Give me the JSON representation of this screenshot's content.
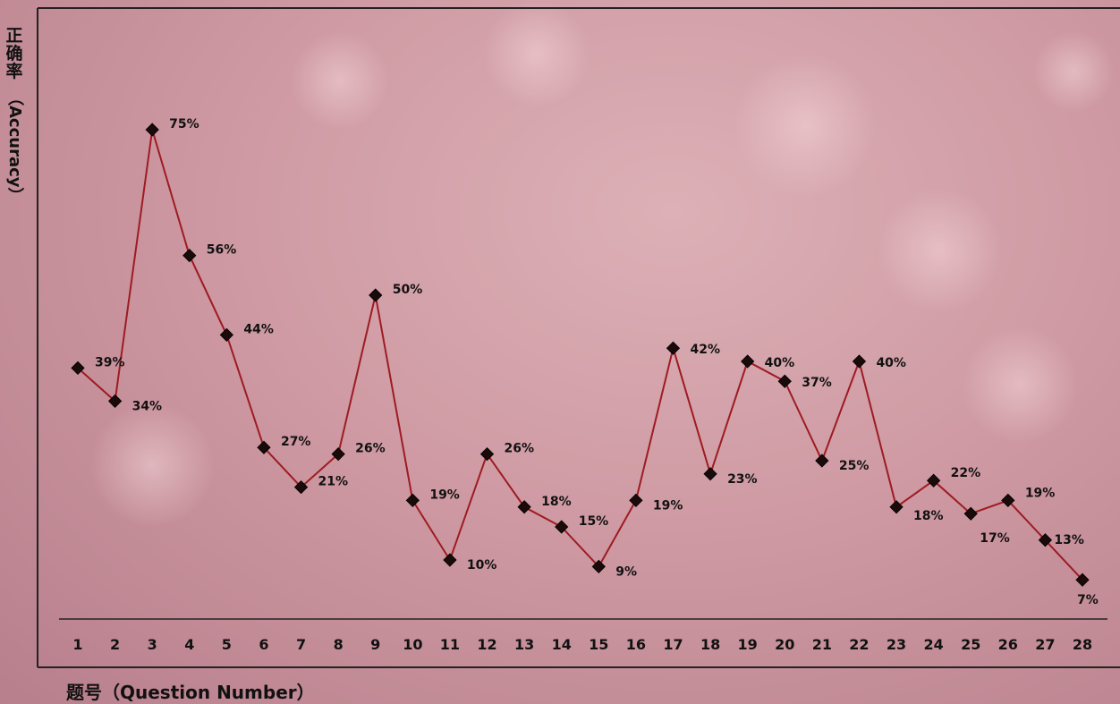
{
  "chart_data": {
    "type": "line",
    "xlabel": "题号（Question Number）",
    "ylabel_cn": [
      "正",
      "确",
      "率"
    ],
    "ylabel_en": "（Accuracy）",
    "categories": [
      "1",
      "2",
      "3",
      "4",
      "5",
      "6",
      "7",
      "8",
      "9",
      "10",
      "11",
      "12",
      "13",
      "14",
      "15",
      "16",
      "17",
      "18",
      "19",
      "20",
      "21",
      "22",
      "23",
      "24",
      "25",
      "26",
      "27",
      "28"
    ],
    "series": [
      {
        "values": [
          39,
          34,
          75,
          56,
          44,
          27,
          21,
          26,
          50,
          19,
          10,
          26,
          18,
          15,
          9,
          19,
          42,
          23,
          40,
          37,
          25,
          40,
          18,
          22,
          17,
          19,
          13,
          7
        ],
        "labels": [
          "39%",
          "34%",
          "75%",
          "56%",
          "44%",
          "27%",
          "21%",
          "26%",
          "50%",
          "19%",
          "10%",
          "26%",
          "18%",
          "15%",
          "9%",
          "19%",
          "42%",
          "23%",
          "40%",
          "37%",
          "25%",
          "40%",
          "18%",
          "22%",
          "17%",
          "19%",
          "13%",
          "7%"
        ]
      }
    ],
    "grid": false,
    "colors": {
      "line": "#9e1b22",
      "marker": "#1a0a0a",
      "frame": "#222222"
    }
  }
}
